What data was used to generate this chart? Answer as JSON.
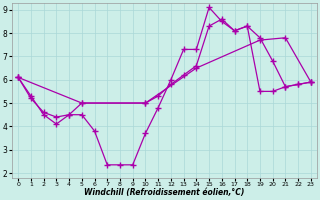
{
  "title": "",
  "xlabel": "Windchill (Refroidissement éolien,°C)",
  "ylabel": "",
  "xlim": [
    -0.5,
    23.5
  ],
  "ylim": [
    1.8,
    9.3
  ],
  "xticks": [
    0,
    1,
    2,
    3,
    4,
    5,
    6,
    7,
    8,
    9,
    10,
    11,
    12,
    13,
    14,
    15,
    16,
    17,
    18,
    19,
    20,
    21,
    22,
    23
  ],
  "yticks": [
    2,
    3,
    4,
    5,
    6,
    7,
    8,
    9
  ],
  "bg_color": "#cceee8",
  "line_color": "#aa00aa",
  "grid_color": "#aad8d8",
  "line1_x": [
    0,
    1,
    2,
    3,
    4,
    5,
    6,
    7,
    8,
    9,
    10,
    11,
    12,
    13,
    14,
    15,
    16,
    17,
    18,
    19,
    20,
    21,
    22,
    23
  ],
  "line1_y": [
    6.1,
    5.3,
    4.5,
    4.1,
    4.5,
    4.5,
    3.8,
    2.35,
    2.35,
    2.35,
    3.7,
    4.8,
    6.0,
    7.3,
    7.3,
    9.1,
    8.5,
    8.1,
    8.3,
    7.8,
    6.8,
    5.7,
    5.8,
    5.9
  ],
  "line2_x": [
    0,
    1,
    2,
    3,
    4,
    5,
    10,
    11,
    12,
    13,
    14,
    15,
    16,
    17,
    18,
    19,
    20,
    21,
    22,
    23
  ],
  "line2_y": [
    6.1,
    5.2,
    4.6,
    4.4,
    4.5,
    5.0,
    5.0,
    5.3,
    5.8,
    6.2,
    6.6,
    8.3,
    8.6,
    8.1,
    8.3,
    5.5,
    5.5,
    5.7,
    5.8,
    5.9
  ],
  "line3_x": [
    0,
    5,
    10,
    14,
    19,
    21,
    23
  ],
  "line3_y": [
    6.1,
    5.0,
    5.0,
    6.5,
    7.7,
    7.8,
    5.9
  ],
  "marker": "+",
  "markersize": 4,
  "linewidth": 0.9
}
